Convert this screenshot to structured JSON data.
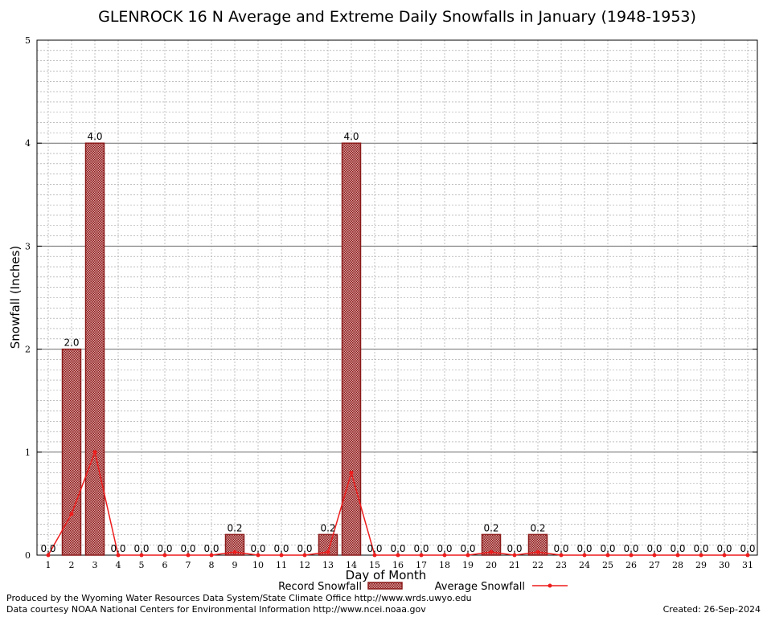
{
  "chart_data": {
    "type": "bar",
    "title": "GLENROCK 16 N Average and Extreme Daily Snowfalls in January (1948-1953)",
    "xlabel": "Day of Month",
    "ylabel": "Snowfall (Inches)",
    "ylim": [
      0,
      5
    ],
    "yticks": [
      "0",
      "1",
      "2",
      "3",
      "4",
      "5"
    ],
    "grid": true,
    "legend_position": "bottom",
    "categories": [
      "1",
      "2",
      "3",
      "4",
      "5",
      "6",
      "7",
      "8",
      "9",
      "10",
      "11",
      "12",
      "13",
      "14",
      "15",
      "16",
      "17",
      "18",
      "19",
      "20",
      "21",
      "22",
      "23",
      "24",
      "25",
      "26",
      "27",
      "28",
      "29",
      "30",
      "31"
    ],
    "series": [
      {
        "name": "Record Snowfall",
        "kind": "bar",
        "color": "#8b1a1a",
        "values": [
          0.0,
          2.0,
          4.0,
          0.0,
          0.0,
          0.0,
          0.0,
          0.0,
          0.2,
          0.0,
          0.0,
          0.0,
          0.2,
          4.0,
          0.0,
          0.0,
          0.0,
          0.0,
          0.0,
          0.2,
          0.0,
          0.2,
          0.0,
          0.0,
          0.0,
          0.0,
          0.0,
          0.0,
          0.0,
          0.0,
          0.0
        ],
        "labels": [
          "0.0",
          "2.0",
          "4.0",
          "0.0",
          "0.0",
          "0.0",
          "0.0",
          "0.0",
          "0.2",
          "0.0",
          "0.0",
          "0.0",
          "0.2",
          "4.0",
          "0.0",
          "0.0",
          "0.0",
          "0.0",
          "0.0",
          "0.2",
          "0.0",
          "0.2",
          "0.0",
          "0.0",
          "0.0",
          "0.0",
          "0.0",
          "0.0",
          "0.0",
          "0.0",
          "0.0"
        ]
      },
      {
        "name": "Average Snowfall",
        "kind": "line",
        "color": "#ee1c1c",
        "values": [
          0.0,
          0.4,
          1.0,
          0.0,
          0.0,
          0.0,
          0.0,
          0.0,
          0.03,
          0.0,
          0.0,
          0.0,
          0.03,
          0.8,
          0.0,
          0.0,
          0.0,
          0.0,
          0.0,
          0.03,
          0.0,
          0.03,
          0.0,
          0.0,
          0.0,
          0.0,
          0.0,
          0.0,
          0.0,
          0.0,
          0.0
        ]
      }
    ]
  },
  "footer": {
    "line1": "Produced by the Wyoming Water Resources Data System/State Climate Office http://www.wrds.uwyo.edu",
    "line2": "Data courtesy NOAA National Centers for Environmental Information http://www.ncei.noaa.gov",
    "created": "Created:  26-Sep-2024"
  }
}
